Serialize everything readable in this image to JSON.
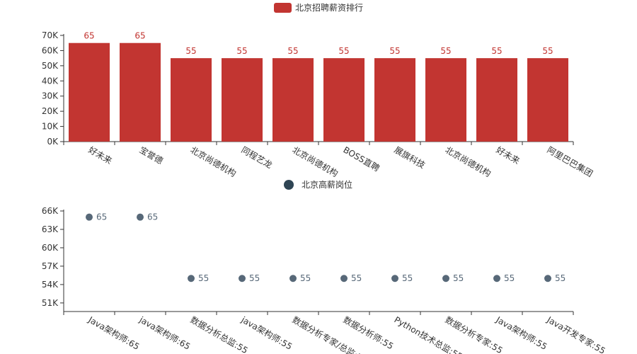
{
  "chart_data": [
    {
      "type": "bar",
      "legend": {
        "label": "北京招聘薪资排行",
        "color": "#c23531",
        "position": "top-center"
      },
      "series": [
        {
          "name": "北京招聘薪资排行",
          "values": [
            65,
            65,
            55,
            55,
            55,
            55,
            55,
            55,
            55,
            55
          ]
        }
      ],
      "categories": [
        "好未来",
        "宝誉德",
        "北京尚德机构",
        "同程艺龙",
        "北京尚德机构",
        "BOSS直聘",
        "展旗科技",
        "北京尚德机构",
        "好未来",
        "阿里巴巴集团"
      ],
      "data_labels": [
        "65",
        "65",
        "55",
        "55",
        "55",
        "55",
        "55",
        "55",
        "55",
        "55"
      ],
      "y_ticks": [
        "0K",
        "10K",
        "20K",
        "30K",
        "40K",
        "50K",
        "60K",
        "70K"
      ],
      "ylim": [
        0,
        70
      ],
      "grid": false
    },
    {
      "type": "scatter",
      "legend": {
        "label": "北京高薪岗位",
        "color": "#2f4554",
        "position": "top-center"
      },
      "series": [
        {
          "name": "北京高薪岗位",
          "values": [
            65,
            65,
            55,
            55,
            55,
            55,
            55,
            55,
            55,
            55
          ]
        }
      ],
      "categories": [
        "Java架构师:65",
        "java架构师:65",
        "数据分析总监:55",
        "java架构师:55",
        "数据分析专家/总监:55",
        "数据分析师:55",
        "Python技术总监:55",
        "数据分析专家:55",
        "Java架构师:55",
        "Java开发专家:55"
      ],
      "data_labels": [
        "65",
        "65",
        "55",
        "55",
        "55",
        "55",
        "55",
        "55",
        "55",
        "55"
      ],
      "y_ticks": [
        "51K",
        "54K",
        "57K",
        "60K",
        "63K",
        "66K"
      ],
      "ylim": [
        49.6,
        66
      ],
      "grid": false
    }
  ],
  "colors": {
    "bar": "#c23531",
    "bar_label": "#c23531",
    "point": "#576878",
    "axis": "#333333",
    "text": "#333333"
  }
}
